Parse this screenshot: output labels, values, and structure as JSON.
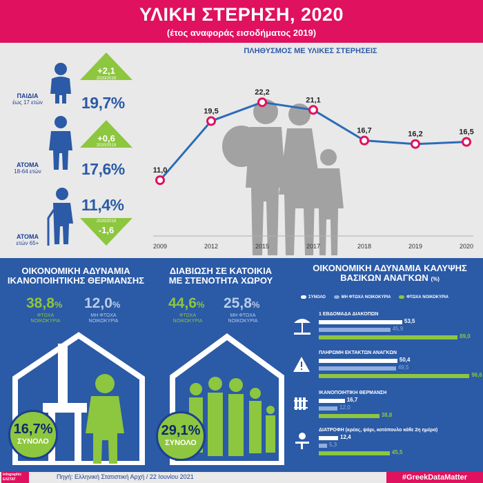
{
  "header": {
    "title": "ΥΛΙΚΗ ΣΤΕΡΗΣΗ, 2020",
    "subtitle": "(έτος αναφοράς εισοδήματος 2019)"
  },
  "groups": [
    {
      "name": "ΠΑΙΔΙΑ",
      "age": "έως 17 ετών",
      "value": "19,7%",
      "change": "+2,1",
      "change_period": "2020/2019",
      "direction": "up"
    },
    {
      "name": "ΑΤΟΜΑ",
      "age": "18-64 ετών",
      "value": "17,6%",
      "change": "+0,6",
      "change_period": "2020/2019",
      "direction": "up"
    },
    {
      "name": "ΑΤΟΜΑ",
      "age": "ετών 65+",
      "value": "11,4%",
      "change": "-1,6",
      "change_period": "2020/2019",
      "direction": "down"
    }
  ],
  "chart_data": [
    {
      "type": "line",
      "title": "ΠΛΗΘΥΣΜΟΣ ΜΕ ΥΛΙΚΕΣ ΣΤΕΡΗΣΕΙΣ",
      "categories": [
        "2009",
        "2012",
        "2015",
        "2017",
        "2018",
        "2019",
        "2020"
      ],
      "values": [
        11.0,
        19.5,
        22.2,
        21.1,
        16.7,
        16.2,
        16.5
      ],
      "labels": [
        "11,0",
        "19,5",
        "22,2",
        "21,1",
        "16,7",
        "16,2",
        "16,5"
      ],
      "ylim": [
        0,
        25
      ],
      "grid": false,
      "colors": {
        "line": "#2b6cb8",
        "marker": "#e0115f"
      }
    },
    {
      "type": "bar",
      "title": "ΟΙΚΟΝΟΜΙΚΗ ΑΔΥΝΑΜΙΑ ΚΑΛΥΨΗΣ ΒΑΣΙΚΩΝ ΑΝΑΓΚΩΝ",
      "unit": "(%)",
      "legend_placement": "top",
      "series_names": [
        "ΣΥΝΟΛΟ",
        "ΜΗ ΦΤΩΧΑ ΝΟΙΚΟΚΥΡΙΑ",
        "ΦΤΩΧΑ ΝΟΙΚΟΚΥΡΙΑ"
      ],
      "series_colors": [
        "#ffffff",
        "#8fb0dc",
        "#8dc63f"
      ],
      "categories": [
        {
          "label": "1 ΕΒΔΟΜΑΔΑ ΔΙΑΚΟΠΩΝ",
          "icon": "beach-umbrella-icon",
          "values": [
            53.5,
            45.9,
            89.0
          ],
          "texts": [
            "53,5",
            "45,9",
            "89,0"
          ]
        },
        {
          "label": "ΠΛΗΡΩΜΗ ΕΚΤΑΚΤΩΝ ΑΝΑΓΚΩΝ",
          "icon": "warning-icon",
          "values": [
            50.4,
            49.5,
            96.6
          ],
          "texts": [
            "50,4",
            "49,5",
            "96,6"
          ]
        },
        {
          "label": "ΙΚΑΝΟΠΟΙΗΤΙΚΗ ΘΕΡΜΑΝΣΗ",
          "icon": "radiator-icon",
          "values": [
            16.7,
            12.0,
            38.8
          ],
          "texts": [
            "16,7",
            "12,0",
            "38,8"
          ]
        },
        {
          "label": "ΔΙΑΤΡΟΦΗ (κρέας, ψάρι, κοτόπουλο κάθε 2η ημέρα)",
          "icon": "dining-icon",
          "values": [
            12.4,
            5.3,
            45.5
          ],
          "texts": [
            "12,4",
            "5,3",
            "45,5"
          ]
        }
      ],
      "xlim": [
        0,
        100
      ]
    }
  ],
  "heating": {
    "title_line1": "ΟΙΚΟΝΟΜΙΚΗ ΑΔΥΝΑΜΙΑ",
    "title_line2": "ΙΚΑΝΟΠΟΙΗΤΙΚΗΣ ΘΕΡΜΑΝΣΗΣ",
    "poor_value": "38,8",
    "poor_unit": "%",
    "poor_label_1": "ΦΤΩΧΑ",
    "poor_label_2": "ΝΟΙΚΟΚΥΡΙΑ",
    "nonpoor_value": "12,0",
    "nonpoor_unit": "%",
    "nonpoor_label_1": "ΜΗ ΦΤΩΧΑ",
    "nonpoor_label_2": "ΝΟΙΚΟΚΥΡΙΑ",
    "total_value": "16,7%",
    "total_label": "ΣΥΝΟΛΟ"
  },
  "crowding": {
    "title_line1": "ΔΙΑΒΙΩΣΗ ΣΕ ΚΑΤΟΙΚΙΑ",
    "title_line2": "ΜΕ ΣΤΕΝΟΤΗΤΑ ΧΩΡΟΥ",
    "poor_value": "44,6",
    "poor_unit": "%",
    "poor_label_1": "ΦΤΩΧΑ",
    "poor_label_2": "ΝΟΙΚΟΚΥΡΙΑ",
    "nonpoor_value": "25,8",
    "nonpoor_unit": "%",
    "nonpoor_label_1": "ΜΗ ΦΤΩΧΑ",
    "nonpoor_label_2": "ΝΟΙΚΟΚΥΡΙΑ",
    "total_value": "29,1%",
    "total_label": "ΣΥΝΟΛΟ"
  },
  "footer": {
    "logo_line1": "infographic",
    "logo_line2": "ΕΛΣΤΑΤ",
    "source": "Πηγή: Ελληνική Στατιστική Αρχή  / 22 Ιουνίου 2021",
    "hashtag": "#GreekDataMatter"
  },
  "colors": {
    "brand_pink": "#e0115f",
    "blue": "#2b5aa6",
    "green": "#8dc63f",
    "grey_bg": "#e9e9e9"
  }
}
